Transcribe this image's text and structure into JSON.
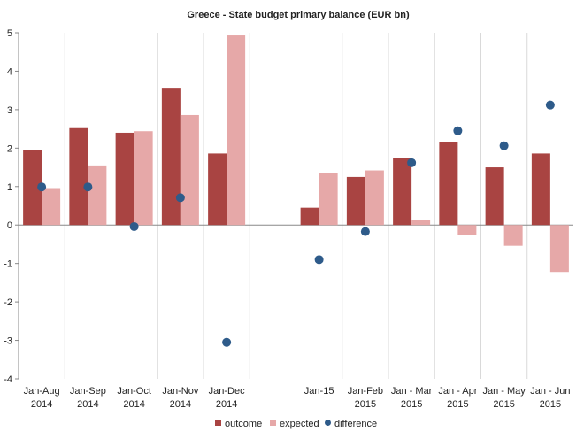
{
  "chart_data": {
    "type": "bar",
    "title": "Greece - State budget primary balance (EUR bn)",
    "categories": [
      [
        "Jan-Aug",
        "2014"
      ],
      [
        "Jan-Sep",
        "2014"
      ],
      [
        "Jan-Oct",
        "2014"
      ],
      [
        "Jan-Nov",
        "2014"
      ],
      [
        "Jan-Dec",
        "2014"
      ],
      [
        "",
        ""
      ],
      [
        "Jan-15",
        ""
      ],
      [
        "Jan-Feb",
        "2015"
      ],
      [
        "Jan - Mar",
        "2015"
      ],
      [
        "Jan - Apr",
        "2015"
      ],
      [
        "Jan - May",
        "2015"
      ],
      [
        "Jan - Jun",
        "2015"
      ]
    ],
    "series": [
      {
        "name": "outcome",
        "type": "bar",
        "color": "#a94442",
        "values": [
          1.95,
          2.52,
          2.4,
          3.57,
          1.86,
          null,
          0.45,
          1.25,
          1.74,
          2.16,
          1.5,
          1.86
        ]
      },
      {
        "name": "expected",
        "type": "bar",
        "color": "#e6a8a8",
        "values": [
          0.96,
          1.55,
          2.44,
          2.86,
          4.93,
          null,
          1.35,
          1.42,
          0.12,
          -0.27,
          -0.54,
          -1.22
        ]
      },
      {
        "name": "difference",
        "type": "scatter",
        "color": "#2e5b8a",
        "values": [
          0.99,
          0.99,
          -0.04,
          0.71,
          -3.05,
          null,
          -0.9,
          -0.17,
          1.62,
          2.45,
          2.06,
          3.12
        ]
      }
    ],
    "y_ticks": [
      "5",
      "4",
      "3",
      "2",
      "1",
      "0",
      "-1",
      "-2",
      "-3",
      "-4"
    ],
    "ylim": [
      -4,
      5
    ],
    "grid": "vertical category separators",
    "legend_position": "bottom"
  }
}
